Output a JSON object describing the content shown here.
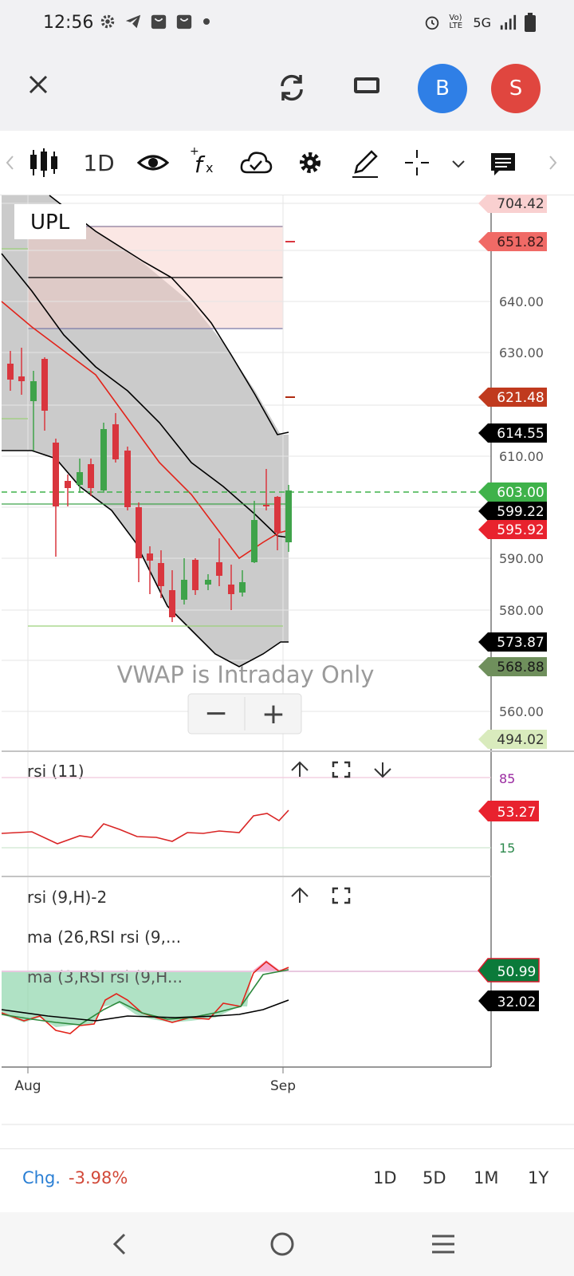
{
  "status_bar": {
    "time": "12:56",
    "left_icons": [
      "gear-icon",
      "telegram-icon",
      "shopping-bag-icon",
      "shopping-bag-icon",
      "dot-icon"
    ],
    "network_label": "Vo) LTE",
    "network_type": "5G",
    "right_icons": [
      "alarm-icon",
      "signal-icon",
      "battery-icon"
    ]
  },
  "top_bar": {
    "avatar_b": "B",
    "avatar_s": "S",
    "avatar_b_color": "#2f7fe6",
    "avatar_s_color": "#e0463f"
  },
  "toolbar": {
    "interval": "1D",
    "icons": [
      "candlestick-icon",
      "eye-icon",
      "fx-icon",
      "cloud-check-icon",
      "gear-icon",
      "pencil-icon",
      "crosshair-icon",
      "chevron-down-icon",
      "comment-icon",
      "chevron-right-icon"
    ]
  },
  "chart": {
    "symbol": "UPL",
    "vwap_note": "VWAP is Intraday Only",
    "zoom_out_label": "−",
    "zoom_in_label": "+",
    "price_axis_ticks": [
      "640.00",
      "630.00",
      "610.00",
      "590.00",
      "580.00",
      "560.00"
    ],
    "price_badges": [
      {
        "label": "704.42",
        "bg": "#f9d0d0",
        "fg": "#333333"
      },
      {
        "label": "651.82",
        "bg": "#f06a66",
        "fg": "#3a1a1a"
      },
      {
        "label": "621.48",
        "bg": "#c03a1e",
        "fg": "#ffffff"
      },
      {
        "label": "614.55",
        "bg": "#000000",
        "fg": "#ffffff"
      },
      {
        "label": "603.00",
        "bg": "#3fb24a",
        "fg": "#ffffff"
      },
      {
        "label": "599.22",
        "bg": "#000000",
        "fg": "#ffffff"
      },
      {
        "label": "595.92",
        "bg": "#e8222e",
        "fg": "#ffffff"
      },
      {
        "label": "573.87",
        "bg": "#000000",
        "fg": "#ffffff"
      },
      {
        "label": "568.88",
        "bg": "#6f8f5c",
        "fg": "#1a1a1a"
      },
      {
        "label": "494.02",
        "bg": "#d9ebbd",
        "fg": "#333333"
      }
    ],
    "x_axis_labels": [
      "Aug",
      "Sep"
    ],
    "accent_green": "#3fa34a",
    "accent_red": "#d9363e"
  },
  "rsi_panel": {
    "title": "rsi (11)",
    "level_high": "85",
    "level_low": "15",
    "value_badge": "53.27",
    "icons": [
      "arrow-up-icon",
      "expand-icon",
      "arrow-down-icon"
    ]
  },
  "rsi2_panel": {
    "title": "rsi (9,H)-2",
    "ma1_label": "ma (26,RSI rsi (9,...",
    "ma2_label": "ma (3,RSI rsi (9,H...",
    "badge_green": "50.99",
    "badge_black": "32.02",
    "icons": [
      "arrow-up-icon",
      "expand-icon"
    ]
  },
  "bottom_bar": {
    "change_label": "Chg.",
    "change_value": "-3.98%",
    "ranges": [
      "1D",
      "5D",
      "1M",
      "1Y"
    ]
  },
  "nav_bar": {
    "icons": [
      "back-icon",
      "home-icon",
      "menu-icon"
    ]
  }
}
